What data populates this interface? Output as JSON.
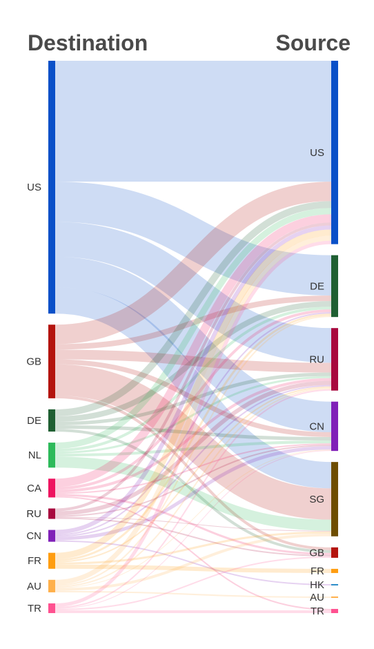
{
  "headers": {
    "left": "Destination",
    "right": "Source"
  },
  "chart_data": {
    "type": "sankey",
    "left_nodes": [
      {
        "name": "US",
        "color": "#0a50c8"
      },
      {
        "name": "GB",
        "color": "#b4140e"
      },
      {
        "name": "DE",
        "color": "#1f5f32"
      },
      {
        "name": "NL",
        "color": "#2dba5a"
      },
      {
        "name": "CA",
        "color": "#ee1460"
      },
      {
        "name": "RU",
        "color": "#a8093e"
      },
      {
        "name": "CN",
        "color": "#8020b8"
      },
      {
        "name": "FR",
        "color": "#ff9d10"
      },
      {
        "name": "AU",
        "color": "#ffb04a"
      },
      {
        "name": "TR",
        "color": "#ff5190"
      }
    ],
    "right_nodes": [
      {
        "name": "US",
        "color": "#0a50c8"
      },
      {
        "name": "DE",
        "color": "#1f5f32"
      },
      {
        "name": "RU",
        "color": "#a8093e"
      },
      {
        "name": "CN",
        "color": "#8020b8"
      },
      {
        "name": "SG",
        "color": "#6e4d00"
      },
      {
        "name": "GB",
        "color": "#b4140e"
      },
      {
        "name": "FR",
        "color": "#ff9d10"
      },
      {
        "name": "HK",
        "color": "#2a8cc8"
      },
      {
        "name": "AU",
        "color": "#ffb04a"
      },
      {
        "name": "TR",
        "color": "#ff5190"
      }
    ],
    "links": [
      {
        "source": "US",
        "target": "US",
        "value": 174
      },
      {
        "source": "US",
        "target": "DE",
        "value": 58
      },
      {
        "source": "US",
        "target": "RU",
        "value": 50
      },
      {
        "source": "US",
        "target": "CN",
        "value": 44
      },
      {
        "source": "US",
        "target": "SG",
        "value": 38
      },
      {
        "source": "GB",
        "target": "US",
        "value": 28
      },
      {
        "source": "GB",
        "target": "SG",
        "value": 45
      },
      {
        "source": "GB",
        "target": "RU",
        "value": 14
      },
      {
        "source": "GB",
        "target": "DE",
        "value": 8
      },
      {
        "source": "GB",
        "target": "CN",
        "value": 7
      },
      {
        "source": "GB",
        "target": "GB",
        "value": 4
      },
      {
        "source": "DE",
        "target": "US",
        "value": 10
      },
      {
        "source": "DE",
        "target": "DE",
        "value": 8
      },
      {
        "source": "DE",
        "target": "RU",
        "value": 5
      },
      {
        "source": "DE",
        "target": "CN",
        "value": 5
      },
      {
        "source": "DE",
        "target": "GB",
        "value": 4
      },
      {
        "source": "NL",
        "target": "US",
        "value": 9
      },
      {
        "source": "NL",
        "target": "DE",
        "value": 4
      },
      {
        "source": "NL",
        "target": "RU",
        "value": 3
      },
      {
        "source": "NL",
        "target": "CN",
        "value": 4
      },
      {
        "source": "NL",
        "target": "SG",
        "value": 16
      },
      {
        "source": "CA",
        "target": "US",
        "value": 12
      },
      {
        "source": "CA",
        "target": "DE",
        "value": 4
      },
      {
        "source": "CA",
        "target": "RU",
        "value": 4
      },
      {
        "source": "CA",
        "target": "CN",
        "value": 2
      },
      {
        "source": "CA",
        "target": "GB",
        "value": 3
      },
      {
        "source": "CA",
        "target": "TR",
        "value": 2
      },
      {
        "source": "RU",
        "target": "US",
        "value": 4
      },
      {
        "source": "RU",
        "target": "RU",
        "value": 6
      },
      {
        "source": "RU",
        "target": "CN",
        "value": 2
      },
      {
        "source": "RU",
        "target": "GB",
        "value": 2
      },
      {
        "source": "RU",
        "target": "SG",
        "value": 1
      },
      {
        "source": "CN",
        "target": "US",
        "value": 6
      },
      {
        "source": "CN",
        "target": "DE",
        "value": 2
      },
      {
        "source": "CN",
        "target": "CN",
        "value": 5
      },
      {
        "source": "CN",
        "target": "HK",
        "value": 2
      },
      {
        "source": "CN",
        "target": "RU",
        "value": 2
      },
      {
        "source": "FR",
        "target": "US",
        "value": 9
      },
      {
        "source": "FR",
        "target": "DE",
        "value": 3
      },
      {
        "source": "FR",
        "target": "RU",
        "value": 2
      },
      {
        "source": "FR",
        "target": "SG",
        "value": 3
      },
      {
        "source": "FR",
        "target": "FR",
        "value": 6
      },
      {
        "source": "AU",
        "target": "US",
        "value": 7
      },
      {
        "source": "AU",
        "target": "DE",
        "value": 2
      },
      {
        "source": "AU",
        "target": "RU",
        "value": 2
      },
      {
        "source": "AU",
        "target": "SG",
        "value": 4
      },
      {
        "source": "AU",
        "target": "AU",
        "value": 2
      },
      {
        "source": "AU",
        "target": "CN",
        "value": 1
      },
      {
        "source": "TR",
        "target": "US",
        "value": 5
      },
      {
        "source": "TR",
        "target": "RU",
        "value": 2
      },
      {
        "source": "TR",
        "target": "CN",
        "value": 1
      },
      {
        "source": "TR",
        "target": "GB",
        "value": 2
      },
      {
        "source": "TR",
        "target": "TR",
        "value": 4
      }
    ]
  }
}
